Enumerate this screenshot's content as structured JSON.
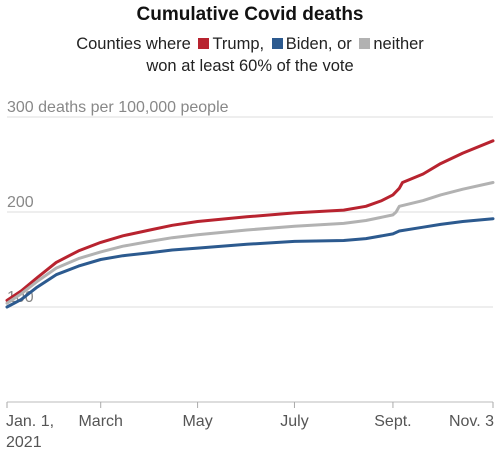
{
  "chart_data": {
    "type": "line",
    "title": "Cumulative Covid deaths",
    "legend": {
      "prefix": "Counties where",
      "items": [
        "Trump,",
        "Biden, or",
        "neither"
      ],
      "line2": "won at least 60% of the vote"
    },
    "ylabel_top": "300 deaths per 100,000 people",
    "y_ticks": [
      {
        "value": 100,
        "label": "100"
      },
      {
        "value": 200,
        "label": "200"
      },
      {
        "value": 300,
        "label": "300 deaths per 100,000 people"
      }
    ],
    "ylim": [
      0,
      300
    ],
    "x_ticks": [
      {
        "date": "2021-01-01",
        "label": [
          "Jan. 1,",
          "2021"
        ]
      },
      {
        "date": "2021-03-01",
        "label": [
          "March"
        ]
      },
      {
        "date": "2021-05-01",
        "label": [
          "May"
        ]
      },
      {
        "date": "2021-07-01",
        "label": [
          "July"
        ]
      },
      {
        "date": "2021-09-01",
        "label": [
          "Sept."
        ]
      },
      {
        "date": "2021-11-03",
        "label": [
          "Nov. 3"
        ]
      }
    ],
    "xlim": [
      "2021-01-01",
      "2021-11-03"
    ],
    "grid": true,
    "series": [
      {
        "name": "Trump,",
        "color": "#b8232f",
        "points": [
          [
            "2021-01-01",
            107
          ],
          [
            "2021-01-10",
            117
          ],
          [
            "2021-01-20",
            131
          ],
          [
            "2021-02-01",
            147
          ],
          [
            "2021-02-15",
            159
          ],
          [
            "2021-03-01",
            168
          ],
          [
            "2021-03-15",
            175
          ],
          [
            "2021-04-01",
            181
          ],
          [
            "2021-04-15",
            186
          ],
          [
            "2021-05-01",
            190
          ],
          [
            "2021-06-01",
            195
          ],
          [
            "2021-07-01",
            199
          ],
          [
            "2021-08-01",
            202
          ],
          [
            "2021-08-15",
            206
          ],
          [
            "2021-08-25",
            212
          ],
          [
            "2021-09-01",
            218
          ],
          [
            "2021-09-05",
            225
          ],
          [
            "2021-09-07",
            231
          ],
          [
            "2021-09-20",
            240
          ],
          [
            "2021-10-01",
            251
          ],
          [
            "2021-10-15",
            262
          ],
          [
            "2021-11-03",
            275
          ]
        ]
      },
      {
        "name": "Biden, or",
        "color": "#2c5a8f",
        "points": [
          [
            "2021-01-01",
            100
          ],
          [
            "2021-01-10",
            108
          ],
          [
            "2021-01-20",
            121
          ],
          [
            "2021-02-01",
            134
          ],
          [
            "2021-02-15",
            143
          ],
          [
            "2021-03-01",
            150
          ],
          [
            "2021-03-15",
            154
          ],
          [
            "2021-04-01",
            157
          ],
          [
            "2021-04-15",
            160
          ],
          [
            "2021-05-01",
            162
          ],
          [
            "2021-06-01",
            166
          ],
          [
            "2021-07-01",
            169
          ],
          [
            "2021-08-01",
            170
          ],
          [
            "2021-08-15",
            172
          ],
          [
            "2021-09-01",
            177
          ],
          [
            "2021-09-05",
            180
          ],
          [
            "2021-09-20",
            184
          ],
          [
            "2021-10-01",
            187
          ],
          [
            "2021-10-15",
            190
          ],
          [
            "2021-11-03",
            193
          ]
        ]
      },
      {
        "name": "neither",
        "color": "#b2b2b2",
        "points": [
          [
            "2021-01-01",
            104
          ],
          [
            "2021-01-10",
            114
          ],
          [
            "2021-01-20",
            127
          ],
          [
            "2021-02-01",
            141
          ],
          [
            "2021-02-15",
            151
          ],
          [
            "2021-03-01",
            158
          ],
          [
            "2021-03-15",
            164
          ],
          [
            "2021-04-01",
            169
          ],
          [
            "2021-04-15",
            173
          ],
          [
            "2021-05-01",
            176
          ],
          [
            "2021-06-01",
            181
          ],
          [
            "2021-07-01",
            185
          ],
          [
            "2021-08-01",
            188
          ],
          [
            "2021-08-15",
            191
          ],
          [
            "2021-09-01",
            197
          ],
          [
            "2021-09-03",
            200
          ],
          [
            "2021-09-05",
            206
          ],
          [
            "2021-09-20",
            212
          ],
          [
            "2021-10-01",
            218
          ],
          [
            "2021-10-15",
            224
          ],
          [
            "2021-11-03",
            231
          ]
        ]
      }
    ]
  }
}
